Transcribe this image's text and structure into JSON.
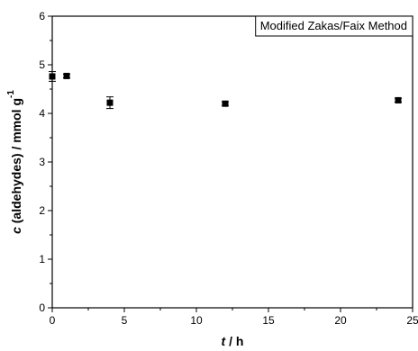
{
  "chart_data": {
    "type": "scatter",
    "title": "",
    "legend": "Modified Zakas/Faix Method",
    "legend_position": "top-right",
    "xlabel": {
      "var": "t",
      "rest": " / h"
    },
    "ylabel": {
      "var": "c",
      "rest": " (aldehydes) / mmol g",
      "sup": "-1"
    },
    "xlim": [
      0,
      25
    ],
    "ylim": [
      0,
      6
    ],
    "xticks": [
      0,
      5,
      10,
      15,
      20,
      25
    ],
    "yticks": [
      0,
      1,
      2,
      3,
      4,
      5,
      6
    ],
    "grid": false,
    "series": [
      {
        "marker": "square",
        "color": "#000000",
        "points": [
          {
            "x": 0,
            "y": 4.76,
            "err": 0.1
          },
          {
            "x": 1,
            "y": 4.77,
            "err": 0.04
          },
          {
            "x": 4,
            "y": 4.22,
            "err": 0.12
          },
          {
            "x": 12,
            "y": 4.2,
            "err": 0.04
          },
          {
            "x": 24,
            "y": 4.27,
            "err": 0.04
          }
        ]
      }
    ]
  }
}
